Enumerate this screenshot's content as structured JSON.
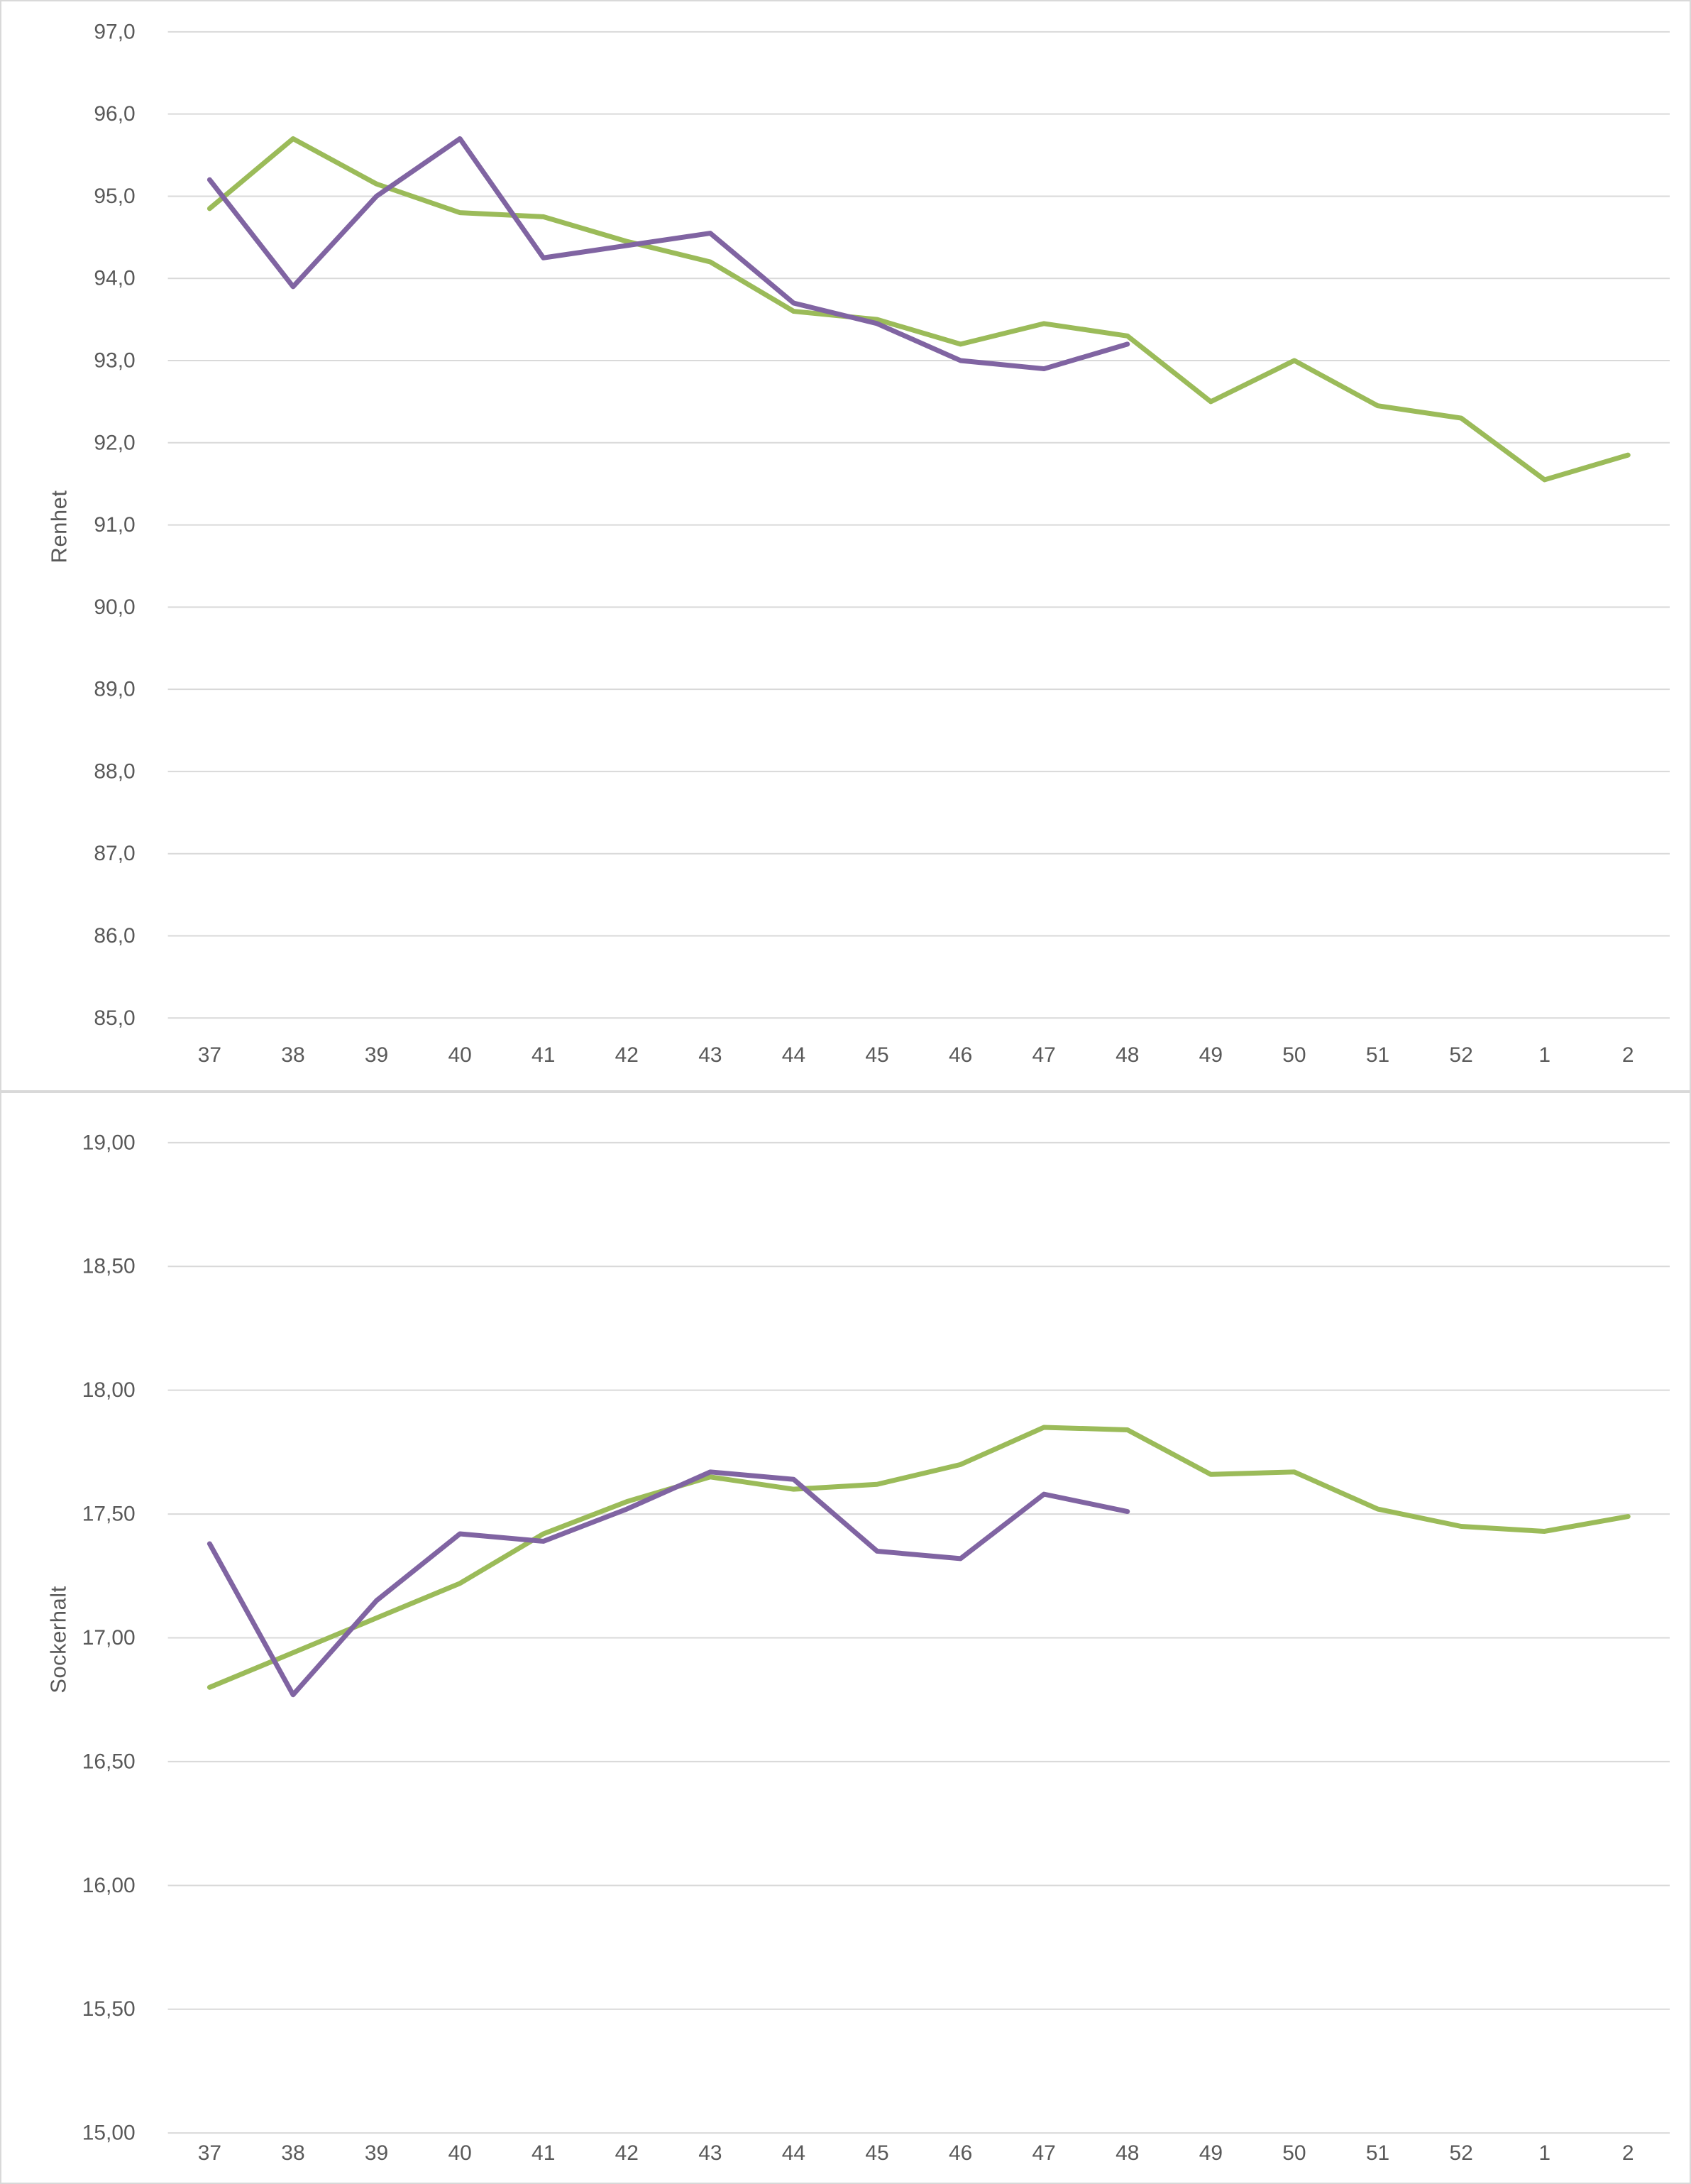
{
  "page": {
    "background_color": "#ffffff",
    "panel_border_color": "#d9d9d9",
    "gridline_color": "#d9d9d9",
    "axis_text_color": "#595959"
  },
  "chart_data": [
    {
      "type": "line",
      "title": "",
      "ylabel": "Renhet",
      "xlabel": "",
      "grid": true,
      "legend_position": "none",
      "ylim": [
        85,
        97
      ],
      "categories": [
        "37",
        "38",
        "39",
        "40",
        "41",
        "42",
        "43",
        "44",
        "45",
        "46",
        "47",
        "48",
        "49",
        "50",
        "51",
        "52",
        "1",
        "2"
      ],
      "yticks": [
        {
          "value": 85,
          "label": "85,0"
        },
        {
          "value": 86,
          "label": "86,0"
        },
        {
          "value": 87,
          "label": "87,0"
        },
        {
          "value": 88,
          "label": "88,0"
        },
        {
          "value": 89,
          "label": "89,0"
        },
        {
          "value": 90,
          "label": "90,0"
        },
        {
          "value": 91,
          "label": "91,0"
        },
        {
          "value": 92,
          "label": "92,0"
        },
        {
          "value": 93,
          "label": "93,0"
        },
        {
          "value": 94,
          "label": "94,0"
        },
        {
          "value": 95,
          "label": "95,0"
        },
        {
          "value": 96,
          "label": "96,0"
        },
        {
          "value": 97,
          "label": "97,0"
        }
      ],
      "series": [
        {
          "name": "green-series",
          "color": "#9BBB59",
          "values": [
            94.85,
            95.7,
            95.15,
            94.8,
            94.75,
            94.45,
            94.2,
            93.6,
            93.5,
            93.2,
            93.45,
            93.3,
            92.5,
            93.0,
            92.45,
            92.3,
            91.55,
            91.85
          ]
        },
        {
          "name": "purple-series",
          "color": "#8064A2",
          "values": [
            95.2,
            93.9,
            95.0,
            95.7,
            94.25,
            94.4,
            94.55,
            93.7,
            93.45,
            93.0,
            92.9,
            93.2,
            null,
            null,
            null,
            null,
            null,
            null
          ]
        }
      ]
    },
    {
      "type": "line",
      "title": "",
      "ylabel": "Sockerhalt",
      "xlabel": "",
      "grid": true,
      "legend_position": "none",
      "ylim": [
        15,
        19
      ],
      "categories": [
        "37",
        "38",
        "39",
        "40",
        "41",
        "42",
        "43",
        "44",
        "45",
        "46",
        "47",
        "48",
        "49",
        "50",
        "51",
        "52",
        "1",
        "2"
      ],
      "yticks": [
        {
          "value": 15.0,
          "label": "15,00"
        },
        {
          "value": 15.5,
          "label": "15,50"
        },
        {
          "value": 16.0,
          "label": "16,00"
        },
        {
          "value": 16.5,
          "label": "16,50"
        },
        {
          "value": 17.0,
          "label": "17,00"
        },
        {
          "value": 17.5,
          "label": "17,50"
        },
        {
          "value": 18.0,
          "label": "18,00"
        },
        {
          "value": 18.5,
          "label": "18,50"
        },
        {
          "value": 19.0,
          "label": "19,00"
        }
      ],
      "series": [
        {
          "name": "green-series",
          "color": "#9BBB59",
          "values": [
            16.8,
            16.94,
            17.08,
            17.22,
            17.42,
            17.55,
            17.65,
            17.6,
            17.62,
            17.7,
            17.85,
            17.84,
            17.66,
            17.67,
            17.52,
            17.45,
            17.43,
            17.49
          ]
        },
        {
          "name": "purple-series",
          "color": "#8064A2",
          "values": [
            17.38,
            16.77,
            17.15,
            17.42,
            17.39,
            17.52,
            17.67,
            17.64,
            17.35,
            17.32,
            17.58,
            17.51,
            null,
            null,
            null,
            null,
            null,
            null
          ]
        }
      ]
    }
  ]
}
